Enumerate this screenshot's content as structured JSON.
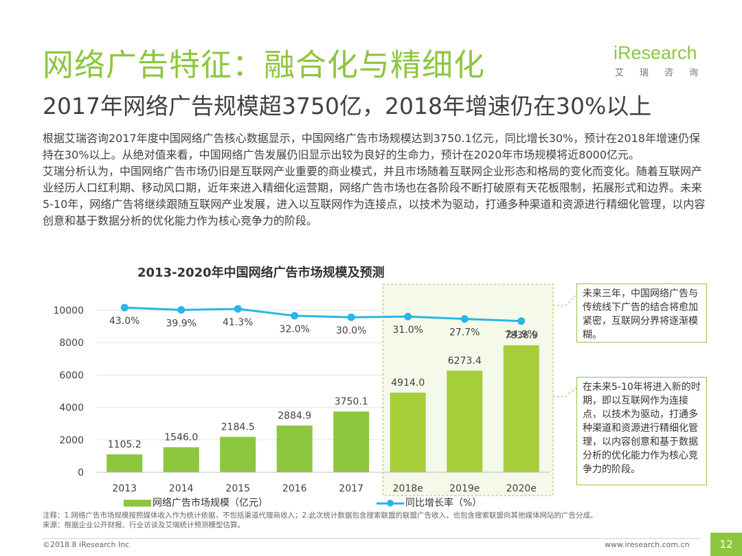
{
  "header": {
    "title": "网络广告特征：融合化与精细化",
    "subtitle": "2017年网络广告规模超3750亿，2018年增速仍在30%以上"
  },
  "logo": {
    "main": "iResearch",
    "sub": "艾瑞咨询"
  },
  "body": {
    "paragraph_1": "根据艾瑞咨询2017年度中国网络广告核心数据显示，中国网络广告市场规模达到3750.1亿元，同比增长30%，预计在2018年增速仍保持在30%以上。从绝对值来看，中国网络广告发展仍旧显示出较为良好的生命力，预计在2020年市场规模将近8000亿元。",
    "paragraph_2": "艾瑞分析认为，中国网络广告市场仍旧是互联网产业重要的商业模式，并且市场随着互联网企业形态和格局的变化而变化。随着互联网产业经历人口红利期、移动风口期，近年来进入精细化运营期，网络广告市场也在各阶段不断打破原有天花板限制，拓展形式和边界。未来5-10年，网络广告将继续跟随互联网产业发展，进入以互联网作为连接点，以技术为驱动，打通多种渠道和资源进行精细化管理，以内容创意和基于数据分析的优化能力作为核心竞争力的阶段。"
  },
  "chart_data": {
    "type": "bar",
    "title": "2013-2020年中国网络广告市场规模及预测",
    "categories": [
      "2013",
      "2014",
      "2015",
      "2016",
      "2017",
      "2018e",
      "2019e",
      "2020e"
    ],
    "forecast_from_index": 5,
    "series": [
      {
        "name": "网络广告市场规模（亿元）",
        "kind": "bar",
        "values": [
          1105.2,
          1546.0,
          2184.5,
          2884.9,
          3750.1,
          4914.0,
          6273.4,
          7836.9
        ],
        "labels": [
          "1105.2",
          "1546.0",
          "2184.5",
          "2884.9",
          "3750.1",
          "4914.0",
          "6273.4",
          "7836.9"
        ]
      },
      {
        "name": "同比增长率（%）",
        "kind": "line",
        "values": [
          43.0,
          39.9,
          41.3,
          32.0,
          30.0,
          31.0,
          27.7,
          24.9
        ],
        "labels": [
          "43.0%",
          "39.9%",
          "41.3%",
          "32.0%",
          "30.0%",
          "31.0%",
          "27.7%",
          "24.9%"
        ]
      }
    ],
    "y_ticks": [
      "0",
      "2000",
      "4000",
      "6000",
      "8000",
      "10000"
    ],
    "ylim": [
      0,
      10000
    ],
    "colors": {
      "bar": "#8dc63f",
      "bar_forecast": "#a6ce39",
      "line": "#29b6e8",
      "accent": "#8dc63f"
    }
  },
  "callouts": {
    "top": "未来三年，中国网络广告与传统线下广告的结合将愈加紧密，互联网分界将逐渐模糊。",
    "bottom": "在未来5-10年将进入新的时期，即以互联网作为连接点，以技术为驱动，打通多种渠道和资源进行精细化管理，以内容创意和基于数据分析的优化能力作为核心竞争力的阶段。"
  },
  "notes": {
    "note": "注释：1.网络广告市场规模按照媒体收入作为统计依据，不包括渠道代理商收入；2.此次统计数据包含搜索联盟的联盟广告收入，也包含搜索联盟向其他媒体网站的广告分成。",
    "source": "来源：根据企业公开财报、行业访谈及艾瑞统计预测模型估算。"
  },
  "footer": {
    "copyright": "©2018.8 iResearch Inc",
    "website": "www.iresearch.com.cn",
    "page": "12"
  }
}
